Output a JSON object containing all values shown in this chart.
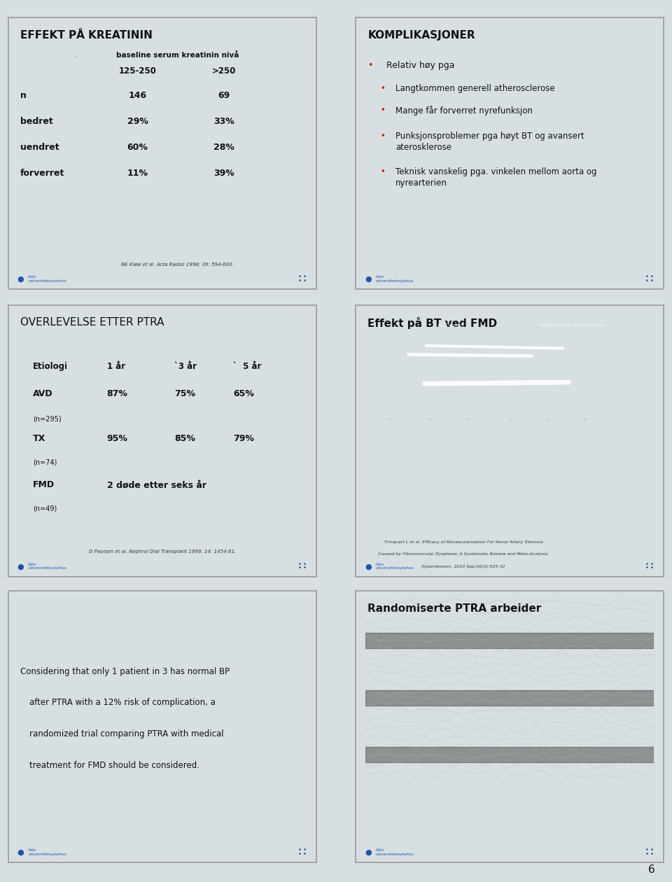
{
  "bg_color": "#d8dfe3",
  "panel_bg": "#e8eef2",
  "border_color": "#999999",
  "page_number": "6",
  "panel1": {
    "title": "EFFEKT PÅ KREATININ",
    "subtitle": "baseline serum kreatinin nivå",
    "col1": "125-250",
    "col2": ">250",
    "rows": [
      {
        "label": "n",
        "v1": "146",
        "v2": "69"
      },
      {
        "label": "bedret",
        "v1": "29%",
        "v2": "33%"
      },
      {
        "label": "uendret",
        "v1": "60%",
        "v2": "28%"
      },
      {
        "label": "forverret",
        "v1": "11%",
        "v2": "39%"
      }
    ],
    "footnote": "NE Kløw et al. Acta Radiol 1998; 39: 594-603."
  },
  "panel2": {
    "title": "KOMPLIKASJONER",
    "bullet_color": "#cc2200",
    "items": [
      {
        "text": "Relativ høy pga",
        "level": 0
      },
      {
        "text": "Langtkommen generell atherosclerose",
        "level": 1
      },
      {
        "text": "Mange får forverret nyrefunksjon",
        "level": 1
      },
      {
        "text": "Punksjonsproblemer pga høyt BT og avansert\naterosklerose",
        "level": 1
      },
      {
        "text": "Teknisk vanskelig pga. vinkelen mellom aorta og\nnyrearterien",
        "level": 1
      }
    ]
  },
  "panel3": {
    "title": "OVERLEVELSE ETTER PTRA",
    "col_headers": [
      "Etiologi",
      "1 år",
      "`3 år",
      "`  5 år"
    ],
    "rows": [
      {
        "label": "AVD",
        "sub": "(n=295)",
        "v1": "87%",
        "v2": "75%",
        "v3": "65%"
      },
      {
        "label": "TX",
        "sub": "(n=74)",
        "v1": "95%",
        "v2": "85%",
        "v3": "79%"
      },
      {
        "label": "FMD",
        "sub": "(n=49)",
        "v1": "2 døde etter seks år",
        "v2": "",
        "v3": ""
      }
    ],
    "footnote": "D Paulsen et al. Nephrol Dial Transplant 1999; 14: 1454-61."
  },
  "panel4": {
    "title": "Effekt på BT ved FMD",
    "footnote1": "Trinquart L et al. Efficacy of Revascularization For Renal Artery Stenosis",
    "footnote2": "Caused by Fibromuscular Dysplasia: A Systematic Review and Meta-Analysis.",
    "footnote3": "Hypertension. 2010 Sep;56(3):525-32"
  },
  "panel5": {
    "line1": "Considering that only 1 patient in 3 has normal BP",
    "line2": "after PTRA with a 12% risk of complication, a",
    "line3": "randomized trial comparing PTRA with medical",
    "line4": "treatment for FMD should be considered."
  },
  "panel6": {
    "title": "Randomiserte PTRA arbeider"
  }
}
